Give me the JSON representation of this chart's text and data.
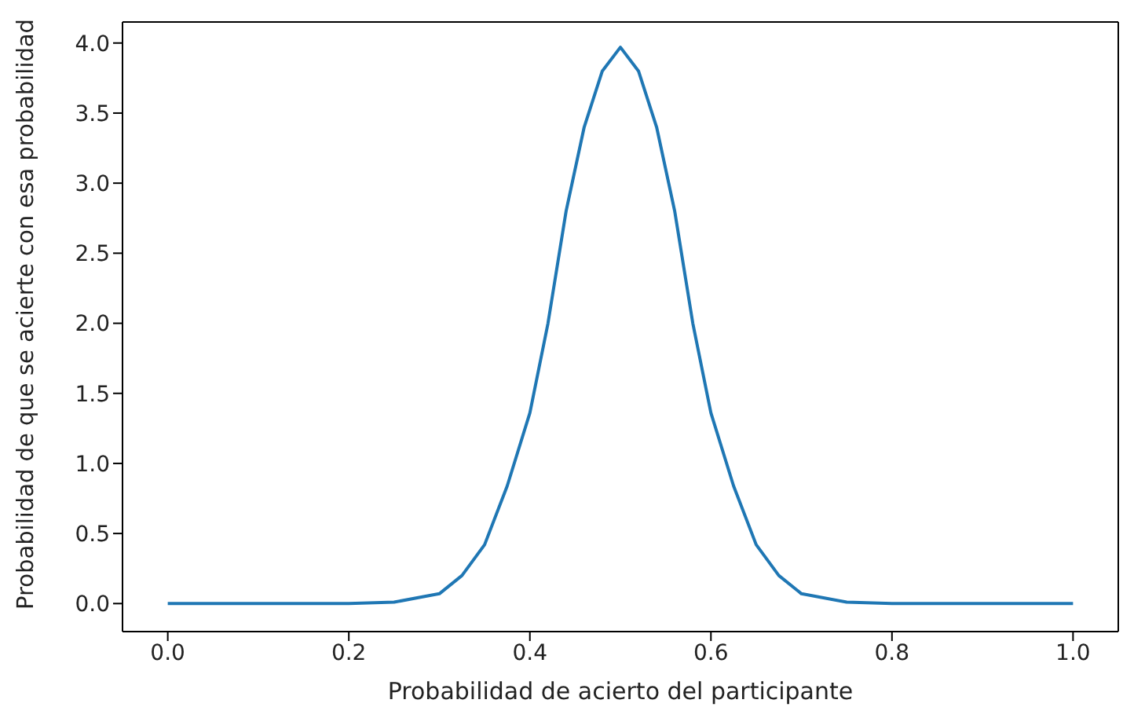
{
  "chart_data": {
    "type": "line",
    "xlabel": "Probabilidad de acierto del participante",
    "ylabel": "Probabilidad de que se acierte con esa probabilidad",
    "x": [
      0,
      0.2,
      0.25,
      0.3,
      0.325,
      0.35,
      0.375,
      0.4,
      0.42,
      0.44,
      0.46,
      0.48,
      0.5,
      0.52,
      0.54,
      0.56,
      0.58,
      0.6,
      0.625,
      0.65,
      0.675,
      0.7,
      0.75,
      0.8,
      1
    ],
    "series": [
      {
        "color": "#1f77b4",
        "values": [
          0,
          0,
          0.01,
          0.07,
          0.2,
          0.42,
          0.84,
          1.36,
          2.0,
          2.8,
          3.4,
          3.8,
          3.97,
          3.8,
          3.4,
          2.8,
          2.0,
          1.36,
          0.84,
          0.42,
          0.2,
          0.07,
          0.01,
          0,
          0
        ]
      }
    ],
    "xlim": [
      -0.05,
      1.05
    ],
    "xticks": [
      {
        "value": 0,
        "label": "0.0"
      },
      0.2,
      0.4,
      0.6,
      0.8,
      {
        "value": 1,
        "label": "1.0"
      }
    ],
    "ylim": [
      -0.2,
      4.15
    ],
    "yticks": [
      {
        "value": 0,
        "label": "0.0"
      },
      0.5,
      {
        "value": 1,
        "label": "1.0"
      },
      1.5,
      {
        "value": 2,
        "label": "2.0"
      },
      2.5,
      {
        "value": 3,
        "label": "3.0"
      },
      3.5,
      {
        "value": 4,
        "label": "4.0"
      }
    ],
    "grid": false,
    "legend": false,
    "marker": "none",
    "line_style": "solid"
  }
}
